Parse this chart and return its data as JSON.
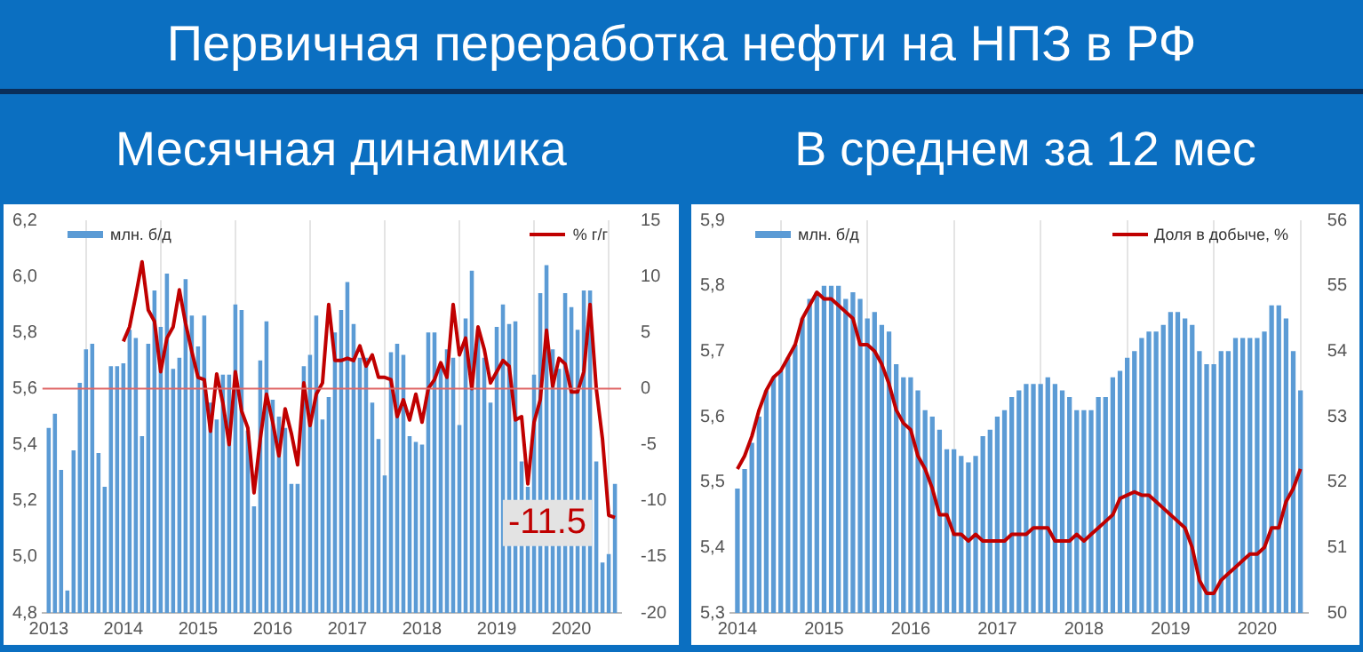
{
  "chart_data": [
    {
      "type": "bar",
      "title": "Первичная переработка нефти на НПЗ в РФ",
      "subtitle": "Месячная динамика",
      "x": [
        "2013-01",
        "2013-02",
        "2013-03",
        "2013-04",
        "2013-05",
        "2013-06",
        "2013-07",
        "2013-08",
        "2013-09",
        "2013-10",
        "2013-11",
        "2013-12",
        "2014-01",
        "2014-02",
        "2014-03",
        "2014-04",
        "2014-05",
        "2014-06",
        "2014-07",
        "2014-08",
        "2014-09",
        "2014-10",
        "2014-11",
        "2014-12",
        "2015-01",
        "2015-02",
        "2015-03",
        "2015-04",
        "2015-05",
        "2015-06",
        "2015-07",
        "2015-08",
        "2015-09",
        "2015-10",
        "2015-11",
        "2015-12",
        "2016-01",
        "2016-02",
        "2016-03",
        "2016-04",
        "2016-05",
        "2016-06",
        "2016-07",
        "2016-08",
        "2016-09",
        "2016-10",
        "2016-11",
        "2016-12",
        "2017-01",
        "2017-02",
        "2017-03",
        "2017-04",
        "2017-05",
        "2017-06",
        "2017-07",
        "2017-08",
        "2017-09",
        "2017-10",
        "2017-11",
        "2017-12",
        "2018-01",
        "2018-02",
        "2018-03",
        "2018-04",
        "2018-05",
        "2018-06",
        "2018-07",
        "2018-08",
        "2018-09",
        "2018-10",
        "2018-11",
        "2018-12",
        "2019-01",
        "2019-02",
        "2019-03",
        "2019-04",
        "2019-05",
        "2019-06",
        "2019-07",
        "2019-08",
        "2019-09",
        "2019-10",
        "2019-11",
        "2019-12",
        "2020-01",
        "2020-02",
        "2020-03",
        "2020-04",
        "2020-05",
        "2020-06",
        "2020-07",
        "2020-08"
      ],
      "series": [
        {
          "name": "млн. б/д",
          "color": "#5b9bd5",
          "values": [
            5.46,
            5.51,
            5.31,
            4.88,
            5.38,
            5.62,
            5.74,
            5.76,
            5.37,
            5.25,
            5.68,
            5.68,
            5.69,
            5.81,
            5.78,
            5.43,
            5.76,
            5.95,
            5.82,
            6.01,
            5.67,
            5.71,
            5.99,
            5.86,
            5.75,
            5.86,
            5.55,
            5.49,
            5.65,
            5.65,
            5.9,
            5.88,
            5.45,
            5.18,
            5.7,
            5.84,
            5.56,
            5.5,
            5.46,
            5.26,
            5.26,
            5.68,
            5.72,
            5.86,
            5.49,
            5.57,
            5.8,
            5.88,
            5.98,
            5.83,
            5.71,
            5.71,
            5.55,
            5.42,
            5.29,
            5.73,
            5.76,
            5.72,
            5.43,
            5.41,
            5.4,
            5.8,
            5.8,
            5.69,
            5.74,
            5.71,
            5.47,
            5.85,
            6.02,
            5.81,
            5.71,
            5.55,
            5.82,
            5.9,
            5.83,
            5.84,
            5.34,
            5.25,
            5.65,
            5.94,
            6.04,
            5.74,
            5.67,
            5.94,
            5.89,
            5.81,
            5.95,
            5.95,
            5.34,
            4.98,
            5.01,
            5.26
          ]
        },
        {
          "name": "% г/г",
          "type": "line",
          "axis": "y2",
          "color": "#c00000",
          "values": [
            null,
            null,
            null,
            null,
            null,
            null,
            null,
            null,
            null,
            null,
            null,
            null,
            4.2,
            5.5,
            8.3,
            11.3,
            7,
            6,
            1.5,
            4.5,
            5.5,
            8.8,
            5.8,
            3.3,
            1,
            0.8,
            -3.8,
            1.3,
            -1.3,
            -5,
            1.5,
            -2,
            -3.5,
            -9.3,
            -4.5,
            -0.5,
            -3,
            -6,
            -1.8,
            -4,
            -6.8,
            0.5,
            -3.3,
            -0.5,
            0.5,
            7.5,
            2.5,
            2.5,
            2.7,
            2.5,
            3.8,
            2,
            3,
            1,
            1,
            0.8,
            -2.5,
            -1,
            -2.8,
            -0.5,
            -3,
            0,
            0.8,
            2.3,
            1,
            7.5,
            3,
            4.5,
            0,
            5.5,
            3.5,
            0.5,
            1.5,
            2.5,
            2,
            -2.8,
            -2.5,
            -8.5,
            -3,
            -1,
            5.2,
            0.2,
            2.7,
            2.2,
            -0.3,
            -0.3,
            1.5,
            7.5,
            0,
            -4.5,
            -11.3,
            -11.5
          ],
          "value_labels": [
            null,
            null,
            null,
            null,
            null,
            null,
            null,
            null,
            null,
            null,
            null,
            null,
            null,
            null,
            null,
            null,
            null,
            null,
            null,
            null,
            null,
            null,
            null,
            null,
            null,
            null,
            null,
            null,
            null,
            null,
            null,
            null,
            null,
            null,
            null,
            null,
            null,
            null,
            null,
            null,
            null,
            null,
            null,
            null,
            null,
            null,
            null,
            null,
            null,
            null,
            null,
            null,
            null,
            null,
            null,
            null,
            null,
            null,
            null,
            null,
            null,
            null,
            null,
            null,
            null,
            null,
            null,
            null,
            null,
            null,
            null,
            null,
            null,
            null,
            null,
            null,
            null,
            null,
            null,
            null,
            null,
            null,
            null,
            null,
            null,
            null,
            null,
            null,
            null,
            null,
            null,
            "-11.5"
          ]
        }
      ],
      "xlim": [
        "2012-12",
        "2020-09"
      ],
      "xticks": [
        "2013",
        "2014",
        "2015",
        "2016",
        "2017",
        "2018",
        "2019",
        "2020"
      ],
      "ylim": [
        4.8,
        6.2
      ],
      "yticks": [
        {
          "value": 4.8,
          "label": "4,8"
        },
        {
          "value": 5.0,
          "label": "5,0"
        },
        {
          "value": 5.2,
          "label": "5,2"
        },
        {
          "value": 5.4,
          "label": "5,4"
        },
        {
          "value": 5.6,
          "label": "5,6"
        },
        {
          "value": 5.8,
          "label": "5,8"
        },
        {
          "value": 6.0,
          "label": "6,0"
        },
        {
          "value": 6.2,
          "label": "6,2"
        }
      ],
      "y2lim": [
        -20,
        15
      ],
      "y2ticks": [
        -20,
        -15,
        -10,
        -5,
        0,
        5,
        10,
        15
      ],
      "ref_lines": [
        {
          "axis": "y",
          "value": 5.6,
          "color": "#e06666"
        }
      ],
      "grid": "x",
      "legend": "top"
    },
    {
      "type": "bar",
      "subtitle": "В среднем за 12 мес",
      "x": [
        "2014-01",
        "2014-02",
        "2014-03",
        "2014-04",
        "2014-05",
        "2014-06",
        "2014-07",
        "2014-08",
        "2014-09",
        "2014-10",
        "2014-11",
        "2014-12",
        "2015-01",
        "2015-02",
        "2015-03",
        "2015-04",
        "2015-05",
        "2015-06",
        "2015-07",
        "2015-08",
        "2015-09",
        "2015-10",
        "2015-11",
        "2015-12",
        "2016-01",
        "2016-02",
        "2016-03",
        "2016-04",
        "2016-05",
        "2016-06",
        "2016-07",
        "2016-08",
        "2016-09",
        "2016-10",
        "2016-11",
        "2016-12",
        "2017-01",
        "2017-02",
        "2017-03",
        "2017-04",
        "2017-05",
        "2017-06",
        "2017-07",
        "2017-08",
        "2017-09",
        "2017-10",
        "2017-11",
        "2017-12",
        "2018-01",
        "2018-02",
        "2018-03",
        "2018-04",
        "2018-05",
        "2018-06",
        "2018-07",
        "2018-08",
        "2018-09",
        "2018-10",
        "2018-11",
        "2018-12",
        "2019-01",
        "2019-02",
        "2019-03",
        "2019-04",
        "2019-05",
        "2019-06",
        "2019-07",
        "2019-08",
        "2019-09",
        "2019-10",
        "2019-11",
        "2019-12",
        "2020-01",
        "2020-02",
        "2020-03",
        "2020-04",
        "2020-05",
        "2020-06",
        "2020-07"
      ],
      "series": [
        {
          "name": "млн. б/д",
          "color": "#5b9bd5",
          "values": [
            5.49,
            5.52,
            5.56,
            5.6,
            5.64,
            5.66,
            5.67,
            5.69,
            5.71,
            5.75,
            5.78,
            5.79,
            5.8,
            5.8,
            5.8,
            5.78,
            5.79,
            5.78,
            5.75,
            5.76,
            5.74,
            5.73,
            5.68,
            5.66,
            5.66,
            5.64,
            5.61,
            5.6,
            5.58,
            5.55,
            5.55,
            5.54,
            5.53,
            5.54,
            5.57,
            5.58,
            5.6,
            5.61,
            5.63,
            5.64,
            5.65,
            5.65,
            5.65,
            5.66,
            5.65,
            5.64,
            5.63,
            5.61,
            5.61,
            5.61,
            5.63,
            5.63,
            5.66,
            5.67,
            5.69,
            5.7,
            5.72,
            5.73,
            5.73,
            5.74,
            5.76,
            5.76,
            5.75,
            5.74,
            5.7,
            5.68,
            5.68,
            5.7,
            5.7,
            5.72,
            5.72,
            5.72,
            5.72,
            5.73,
            5.77,
            5.77,
            5.75,
            5.7,
            5.64
          ]
        },
        {
          "name": "Доля в добыче, %",
          "type": "line",
          "axis": "y2",
          "color": "#c00000",
          "values": [
            52.2,
            52.4,
            52.7,
            53.1,
            53.4,
            53.6,
            53.7,
            53.9,
            54.1,
            54.5,
            54.7,
            54.9,
            54.8,
            54.8,
            54.7,
            54.6,
            54.5,
            54.1,
            54.1,
            54,
            53.8,
            53.5,
            53.1,
            52.9,
            52.8,
            52.4,
            52.2,
            51.9,
            51.5,
            51.5,
            51.2,
            51.2,
            51.1,
            51.2,
            51.1,
            51.1,
            51.1,
            51.1,
            51.2,
            51.2,
            51.2,
            51.3,
            51.3,
            51.3,
            51.1,
            51.1,
            51.1,
            51.2,
            51.1,
            51.2,
            51.3,
            51.4,
            51.5,
            51.75,
            51.8,
            51.85,
            51.8,
            51.8,
            51.7,
            51.6,
            51.5,
            51.4,
            51.3,
            51,
            50.5,
            50.3,
            50.3,
            50.5,
            50.6,
            50.7,
            50.8,
            50.9,
            50.9,
            51,
            51.3,
            51.3,
            51.7,
            51.9,
            52.2
          ]
        }
      ],
      "xlim": [
        "2013-12",
        "2020-08"
      ],
      "xticks": [
        "2014",
        "2015",
        "2016",
        "2017",
        "2018",
        "2019",
        "2020"
      ],
      "ylim": [
        5.3,
        5.9
      ],
      "yticks": [
        {
          "value": 5.3,
          "label": "5,3"
        },
        {
          "value": 5.4,
          "label": "5,4"
        },
        {
          "value": 5.5,
          "label": "5,5"
        },
        {
          "value": 5.6,
          "label": "5,6"
        },
        {
          "value": 5.7,
          "label": "5,7"
        },
        {
          "value": 5.8,
          "label": "5,8"
        },
        {
          "value": 5.9,
          "label": "5,9"
        }
      ],
      "y2lim": [
        50,
        56
      ],
      "y2ticks": [
        50,
        51,
        52,
        53,
        54,
        55,
        56
      ],
      "grid": "x",
      "legend": "top"
    }
  ]
}
